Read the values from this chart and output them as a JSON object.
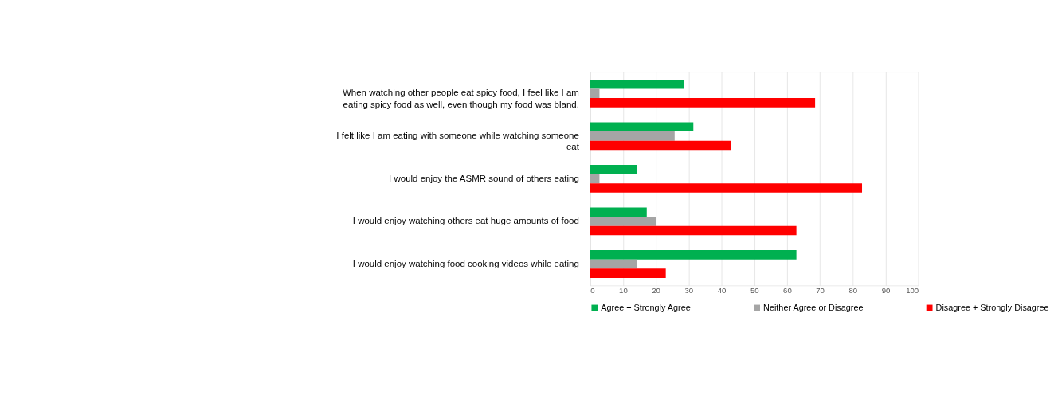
{
  "chart_data": {
    "type": "bar",
    "orientation": "horizontal",
    "categories": [
      "When watching other people eat spicy food, I feel like I am eating spicy food as well, even though my food was bland.",
      "I felt like I am eating with someone while watching someone eat",
      "I would enjoy the ASMR sound of others eating",
      "I would enjoy watching others eat huge amounts of food",
      "I would enjoy watching food cooking videos while eating"
    ],
    "series": [
      {
        "name": "Agree + Strongly Agree",
        "color": "#00b050",
        "values": [
          28.5,
          31.4,
          14.3,
          17.2,
          62.8
        ]
      },
      {
        "name": "Neither Agree or Disagree",
        "color": "#a5a5a5",
        "values": [
          2.8,
          25.7,
          2.8,
          20.1,
          14.3
        ]
      },
      {
        "name": "Disagree + Strongly Disagree",
        "color": "#ff0000",
        "values": [
          68.5,
          42.9,
          82.8,
          62.8,
          23.0
        ]
      }
    ],
    "xlim": [
      0,
      100
    ],
    "xticks": [
      0,
      10,
      20,
      30,
      40,
      50,
      60,
      70,
      80,
      90,
      100
    ],
    "grid": "x",
    "legend": "bottom"
  }
}
